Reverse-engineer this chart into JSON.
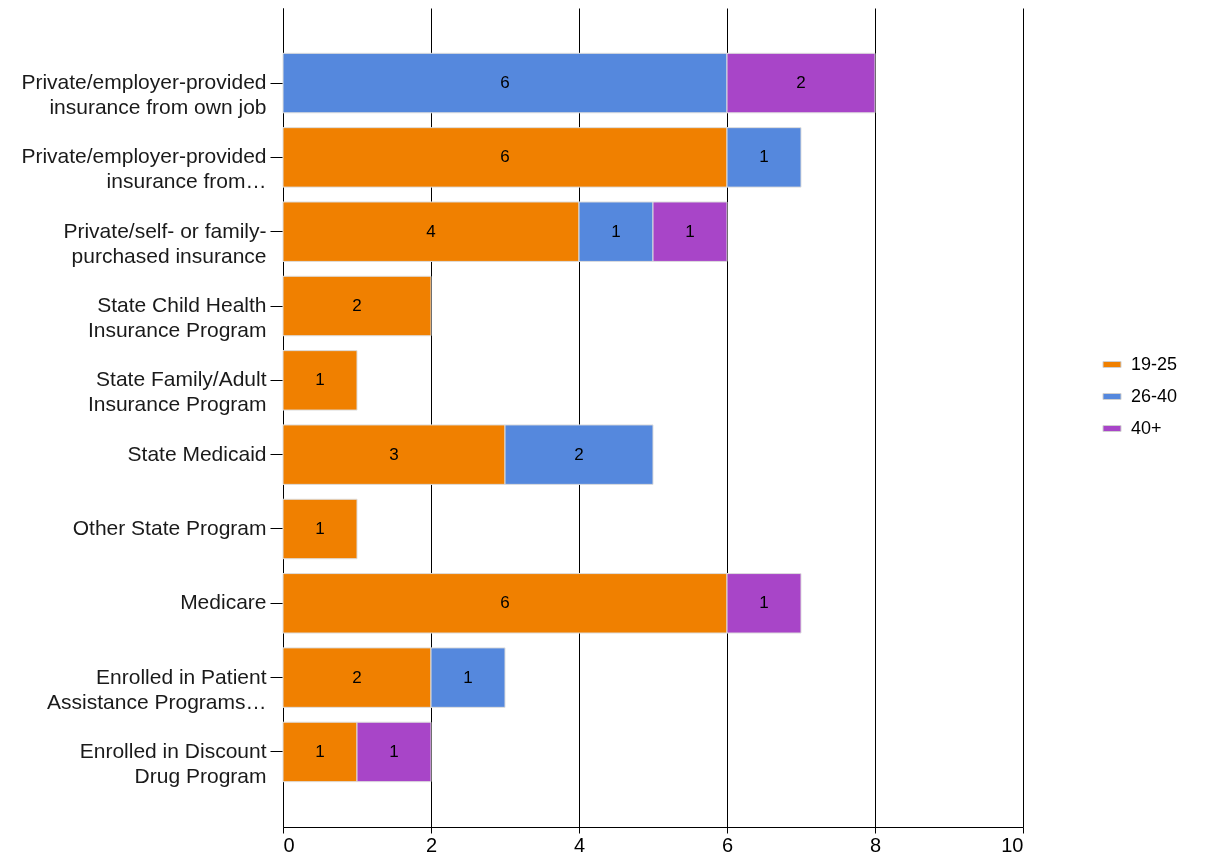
{
  "chart_data": {
    "type": "bar",
    "orientation": "horizontal",
    "stacked": true,
    "categories": [
      "Private/employer-provided insurance from own job",
      "Private/employer-provided insurance from…",
      "Private/self- or family-purchased insurance",
      "State Child Health Insurance Program",
      "State Family/Adult Insurance Program",
      "State Medicaid",
      "Other State Program",
      "Medicare",
      "Enrolled in Patient Assistance Programs…",
      "Enrolled in Discount Drug Program"
    ],
    "series": [
      {
        "name": "19-25",
        "color": "#f08000",
        "values": [
          null,
          6,
          4,
          2,
          1,
          3,
          1,
          6,
          2,
          1
        ]
      },
      {
        "name": "26-40",
        "color": "#5588dd",
        "values": [
          6,
          1,
          1,
          null,
          null,
          2,
          null,
          null,
          1,
          null
        ]
      },
      {
        "name": "40+",
        "color": "#a845c8",
        "values": [
          2,
          null,
          1,
          null,
          null,
          null,
          null,
          1,
          null,
          1
        ]
      }
    ],
    "xlim": [
      0,
      10
    ],
    "xticks": [
      0,
      2,
      4,
      6,
      8,
      10
    ],
    "grid": "x",
    "legend": "right",
    "data_labels": true
  }
}
